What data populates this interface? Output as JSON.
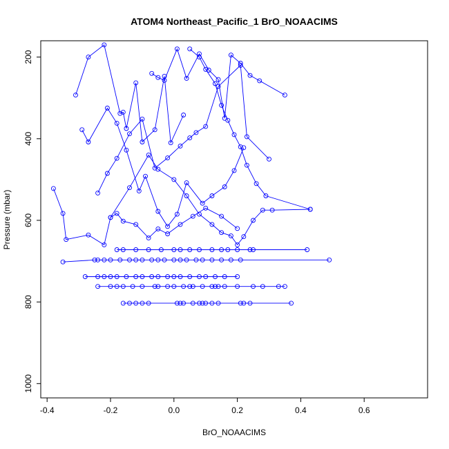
{
  "chart_data": {
    "type": "scatter",
    "title": "ATOM4 Northeast_Pacific_1 BrO_NOAACIMS",
    "xlabel": "BrO_NOAACIMS",
    "ylabel": "Pressure (mbar)",
    "xlim": [
      -0.42,
      0.8
    ],
    "ylim": [
      1035,
      160
    ],
    "y_inverted": true,
    "x_ticks": [
      -0.4,
      -0.2,
      0.0,
      0.2,
      0.4,
      0.6
    ],
    "x_tick_labels": [
      "-0.4",
      "-0.2",
      "0.0",
      "0.2",
      "0.4",
      "0.6"
    ],
    "y_ticks": [
      200,
      400,
      600,
      800,
      1000
    ],
    "y_tick_labels": [
      "200",
      "400",
      "600",
      "800",
      "1000"
    ],
    "grid": false,
    "legend": "none",
    "marker": "open-circle",
    "connected": true,
    "series": [
      {
        "x": [
          -0.16,
          -0.14,
          -0.12,
          -0.1,
          -0.08,
          0.01,
          0.02,
          0.03,
          0.06,
          0.08,
          0.09,
          0.1,
          0.12,
          0.14,
          0.21,
          0.22,
          0.24,
          0.37
        ],
        "y": [
          803,
          803,
          803,
          803,
          803,
          803,
          803,
          803,
          803,
          803,
          803,
          803,
          803,
          803,
          803,
          803,
          803,
          803
        ]
      },
      {
        "x": [
          -0.24,
          -0.2,
          -0.18,
          -0.16,
          -0.13,
          -0.1,
          -0.06,
          -0.05,
          -0.02,
          0.0,
          0.03,
          0.05,
          0.06,
          0.09,
          0.12,
          0.13,
          0.14,
          0.16,
          0.2,
          0.25,
          0.28,
          0.33,
          0.35
        ],
        "y": [
          762,
          762,
          762,
          762,
          762,
          762,
          762,
          762,
          762,
          762,
          762,
          762,
          762,
          762,
          762,
          762,
          762,
          762,
          762,
          762,
          762,
          762,
          762
        ]
      },
      {
        "x": [
          -0.28,
          -0.24,
          -0.22,
          -0.2,
          -0.18,
          -0.15,
          -0.12,
          -0.1,
          -0.07,
          -0.05,
          -0.02,
          0.0,
          0.02,
          0.05,
          0.08,
          0.1,
          0.13,
          0.16,
          0.2
        ],
        "y": [
          738,
          738,
          738,
          738,
          738,
          738,
          738,
          738,
          738,
          738,
          738,
          738,
          738,
          738,
          738,
          738,
          738,
          738,
          738
        ]
      },
      {
        "x": [
          -0.35,
          -0.25,
          -0.24,
          -0.22,
          -0.2,
          -0.17,
          -0.14,
          -0.12,
          -0.1,
          -0.07,
          -0.05,
          -0.03,
          0.0,
          0.02,
          0.04,
          0.07,
          0.09,
          0.12,
          0.15,
          0.18,
          0.21,
          0.49
        ],
        "y": [
          702,
          697,
          697,
          697,
          697,
          697,
          697,
          697,
          697,
          697,
          697,
          697,
          697,
          697,
          697,
          697,
          697,
          697,
          697,
          697,
          697,
          697
        ]
      },
      {
        "x": [
          -0.18,
          -0.16,
          -0.12,
          -0.08,
          -0.04,
          0.0,
          0.02,
          0.05,
          0.08,
          0.12,
          0.15,
          0.17,
          0.2,
          0.24,
          0.25,
          0.42
        ],
        "y": [
          672,
          672,
          672,
          672,
          672,
          672,
          672,
          672,
          672,
          672,
          672,
          672,
          672,
          672,
          672,
          672
        ]
      },
      {
        "x": [
          -0.38,
          -0.35,
          -0.34,
          -0.27,
          -0.22,
          -0.2,
          -0.18,
          -0.16,
          -0.12,
          -0.08,
          -0.05,
          -0.02,
          0.02,
          0.06,
          0.1,
          0.15,
          0.2
        ],
        "y": [
          522,
          583,
          647,
          636,
          660,
          593,
          583,
          602,
          610,
          643,
          621,
          633,
          610,
          590,
          570,
          590,
          620
        ]
      },
      {
        "x": [
          -0.31,
          -0.27,
          -0.22,
          -0.17,
          -0.16,
          -0.15,
          -0.12,
          -0.1,
          -0.06,
          -0.03,
          -0.01,
          0.03
        ],
        "y": [
          293,
          200,
          170,
          338,
          335,
          375,
          263,
          408,
          378,
          247,
          410,
          342
        ]
      },
      {
        "x": [
          -0.29,
          -0.27,
          -0.21,
          -0.18,
          -0.15,
          -0.11,
          -0.09,
          -0.05,
          -0.02,
          0.01,
          0.04,
          0.09,
          0.12,
          0.16,
          0.19,
          0.22
        ],
        "y": [
          378,
          408,
          325,
          362,
          428,
          528,
          492,
          578,
          615,
          585,
          508,
          558,
          540,
          518,
          478,
          422
        ]
      },
      {
        "x": [
          -0.24,
          -0.21,
          -0.18,
          -0.14,
          -0.1,
          -0.06,
          -0.02,
          0.02,
          0.05,
          0.07,
          0.1,
          0.14,
          0.21,
          0.23,
          0.3
        ],
        "y": [
          533,
          485,
          448,
          388,
          352,
          472,
          447,
          418,
          398,
          385,
          370,
          272,
          220,
          395,
          450
        ]
      },
      {
        "x": [
          -0.2,
          -0.14,
          -0.08,
          -0.05,
          0.0,
          0.04,
          0.08,
          0.12,
          0.15,
          0.18,
          0.2,
          0.22,
          0.25,
          0.28,
          0.31,
          0.43
        ],
        "y": [
          593,
          520,
          440,
          475,
          500,
          540,
          585,
          610,
          630,
          638,
          660,
          640,
          600,
          575,
          575,
          573
        ]
      },
      {
        "x": [
          -0.07,
          -0.05,
          -0.03,
          0.01,
          0.04,
          0.08,
          0.11,
          0.14,
          0.16,
          0.18,
          0.21,
          0.24,
          0.27,
          0.35
        ],
        "y": [
          240,
          250,
          257,
          180,
          252,
          192,
          232,
          255,
          350,
          195,
          215,
          245,
          258,
          293
        ]
      },
      {
        "x": [
          0.05,
          0.08,
          0.1,
          0.13,
          0.15,
          0.17,
          0.19,
          0.21,
          0.23,
          0.26,
          0.29,
          0.43
        ],
        "y": [
          180,
          200,
          230,
          265,
          318,
          355,
          390,
          420,
          465,
          510,
          540,
          573
        ]
      }
    ]
  }
}
